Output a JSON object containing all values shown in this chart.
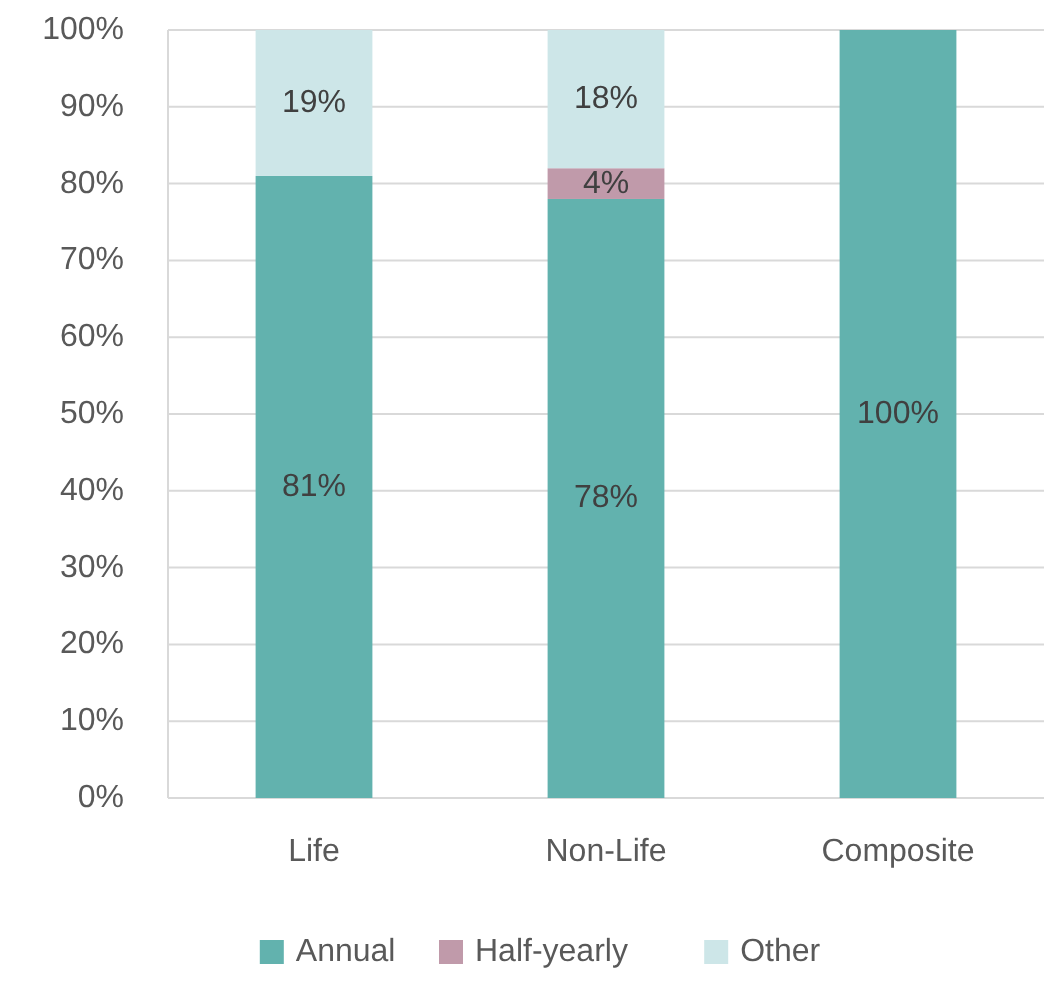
{
  "chart_data": {
    "type": "bar",
    "stacked": true,
    "categories": [
      "Life",
      "Non-Life",
      "Composite"
    ],
    "series": [
      {
        "name": "Annual",
        "color": "#62b2ae",
        "values": [
          81,
          78,
          100
        ],
        "value_labels": [
          "81%",
          "78%",
          "100%"
        ]
      },
      {
        "name": "Half-yearly",
        "color": "#c09aaa",
        "values": [
          null,
          4,
          null
        ],
        "value_labels": [
          null,
          "4%",
          null
        ]
      },
      {
        "name": "Other",
        "color": "#cde6e8",
        "values": [
          19,
          18,
          null
        ],
        "value_labels": [
          "19%",
          "18%",
          null
        ]
      }
    ],
    "ylim": [
      0,
      100
    ],
    "yticks": [
      {
        "value": 0,
        "label": "0%"
      },
      {
        "value": 10,
        "label": "10%"
      },
      {
        "value": 20,
        "label": "20%"
      },
      {
        "value": 30,
        "label": "30%"
      },
      {
        "value": 40,
        "label": "40%"
      },
      {
        "value": 50,
        "label": "50%"
      },
      {
        "value": 60,
        "label": "60%"
      },
      {
        "value": 70,
        "label": "70%"
      },
      {
        "value": 80,
        "label": "80%"
      },
      {
        "value": 90,
        "label": "90%"
      },
      {
        "value": 100,
        "label": "100%"
      }
    ],
    "grid": "y",
    "legend": "bottom"
  }
}
